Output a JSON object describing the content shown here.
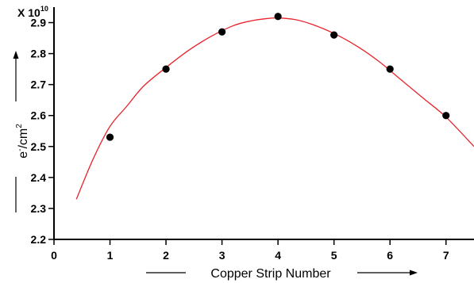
{
  "chart_data": {
    "type": "scatter",
    "xlabel": "Copper Strip Number",
    "ylabel": "e⁻/cm²",
    "ylabel_base": "e",
    "ylabel_sup1": "-",
    "ylabel_mid": "/cm",
    "ylabel_sup2": "2",
    "y_multiplier": "X 10",
    "y_multiplier_exp": "10",
    "xlim": [
      0,
      7.5
    ],
    "ylim": [
      2.2,
      2.95
    ],
    "x_ticks": [
      0,
      1,
      2,
      3,
      4,
      5,
      6,
      7
    ],
    "y_ticks": [
      2.2,
      2.3,
      2.4,
      2.5,
      2.6,
      2.7,
      2.8,
      2.9
    ],
    "series": [
      {
        "kind": "points",
        "x": [
          1,
          2,
          3,
          4,
          5,
          6,
          7
        ],
        "y": [
          2.53,
          2.75,
          2.87,
          2.92,
          2.86,
          2.75,
          2.6
        ],
        "color": "#000000"
      },
      {
        "kind": "fit-curve",
        "x": [
          0.4,
          0.7,
          1.0,
          1.3,
          1.6,
          2.0,
          2.4,
          2.8,
          3.2,
          3.5,
          3.8,
          4.0,
          4.3,
          4.6,
          5.0,
          5.4,
          5.8,
          6.2,
          6.6,
          7.0,
          7.5
        ],
        "y": [
          2.33,
          2.46,
          2.565,
          2.63,
          2.695,
          2.755,
          2.81,
          2.855,
          2.89,
          2.905,
          2.913,
          2.915,
          2.91,
          2.895,
          2.865,
          2.825,
          2.775,
          2.715,
          2.655,
          2.595,
          2.5
        ],
        "color": "#e8242c"
      }
    ],
    "grid": false
  }
}
